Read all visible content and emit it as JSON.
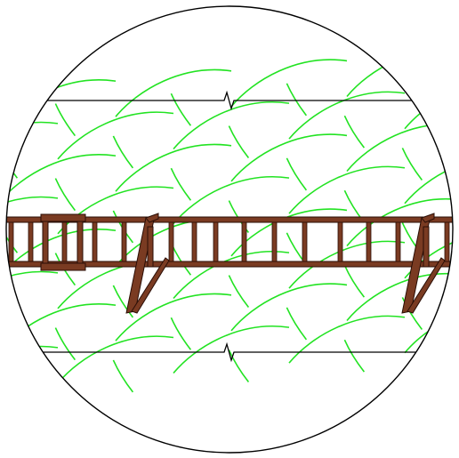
{
  "colors": {
    "background": "#ffffff",
    "outline": "#000000",
    "hatch": "#22e322",
    "ladder_wood": "#7a3b22",
    "ladder_edge": "#2a0e06"
  },
  "elements": {
    "viewport": "circular-detail-view",
    "band": "hatched-band",
    "ladder": "horizontal-ladder-reinforcement",
    "brackets": "end-brackets",
    "break_marks": "break-lines"
  }
}
